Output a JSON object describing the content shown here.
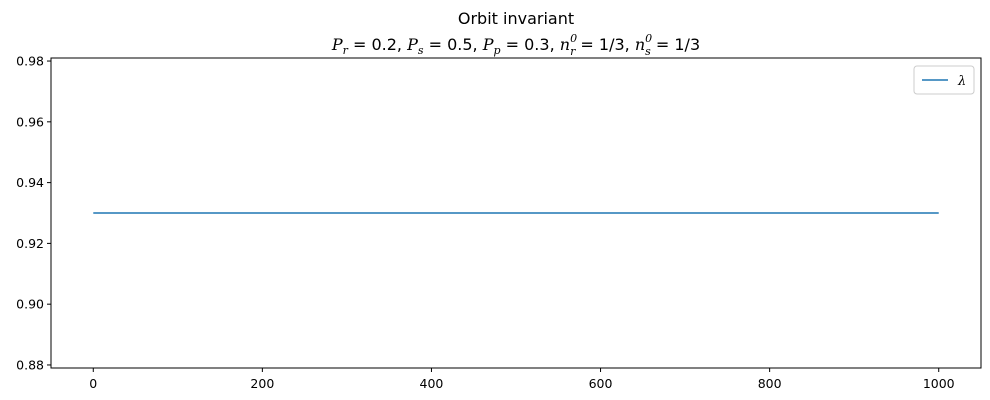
{
  "chart_data": {
    "type": "line",
    "title": "Orbit invariant",
    "subtitle": "P_r = 0.2, P_s = 0.5, P_p = 0.3, n_r^0 = 1/3, n_s^0 = 1/3",
    "subtitle_parts": {
      "pr_sym": "P",
      "pr_sub": "r",
      "pr_val": " = 0.2, ",
      "ps_sym": "P",
      "ps_sub": "s",
      "ps_val": " = 0.5, ",
      "pp_sym": "P",
      "pp_sub": "p",
      "pp_val": " = 0.3, ",
      "nr_sym": "n",
      "nr_sub": "r",
      "nr_sup": "0",
      "nr_val": " = 1/3, ",
      "ns_sym": "n",
      "ns_sub": "s",
      "ns_sup": "0",
      "ns_val": " = 1/3"
    },
    "xlabel": "",
    "ylabel": "",
    "xlim": [
      -50,
      1050
    ],
    "ylim": [
      0.879,
      0.981
    ],
    "xticks": [
      0,
      200,
      400,
      600,
      800,
      1000
    ],
    "xtick_labels": [
      "0",
      "200",
      "400",
      "600",
      "800",
      "1000"
    ],
    "yticks": [
      0.88,
      0.9,
      0.92,
      0.94,
      0.96,
      0.98
    ],
    "ytick_labels": [
      "0.88",
      "0.90",
      "0.92",
      "0.94",
      "0.96",
      "0.98"
    ],
    "grid": false,
    "legend_position": "top-right",
    "series": [
      {
        "name": "λ",
        "color": "#1f77b4",
        "x": [
          0,
          1000
        ],
        "y": [
          0.93,
          0.93
        ]
      }
    ]
  }
}
